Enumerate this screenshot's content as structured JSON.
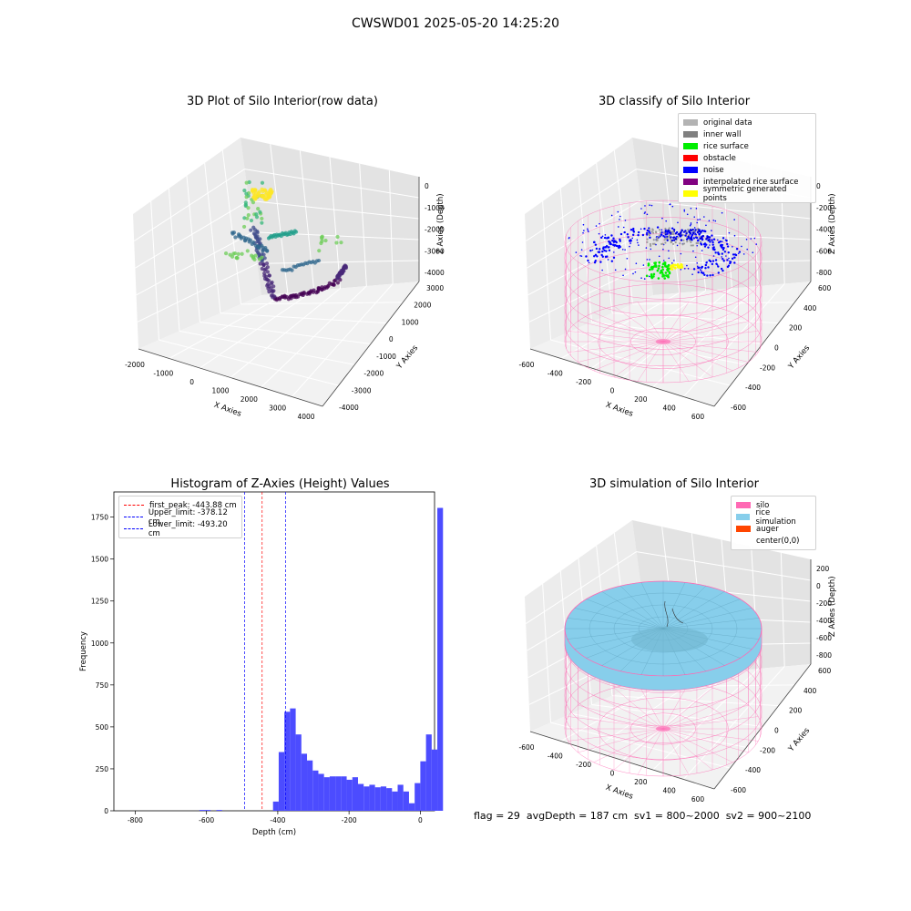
{
  "figure": {
    "suptitle": "CWSWD01 2025-05-20 14:25:20",
    "footer": "flag = 29  avgDepth = 187 cm  sv1 = 800~2000  sv2 = 900~2100"
  },
  "chart_data": [
    {
      "type": "scatter",
      "panel": "raw",
      "title": "3D Plot of Silo Interior(row data)",
      "xlabel": "X Axies",
      "ylabel": "Y Axies",
      "zlabel": "Z Axies (Depth)",
      "x_ticks": [
        "-2000",
        "-1000",
        "0",
        "1000",
        "2000",
        "3000",
        "4000"
      ],
      "y_ticks": [
        "-4000",
        "-3000",
        "-2000",
        "-1000",
        "0",
        "1000",
        "2000",
        "3000"
      ],
      "z_ticks": [
        "-4000",
        "-3000",
        "-2000",
        "-1000",
        "0"
      ],
      "colormap": "viridis"
    },
    {
      "type": "scatter",
      "panel": "classify",
      "title": "3D classify of Silo Interior",
      "xlabel": "X Axies",
      "ylabel": "Y Axies",
      "zlabel": "Z Axies (Depth)",
      "x_ticks": [
        "-600",
        "-400",
        "-200",
        "0",
        "200",
        "400",
        "600"
      ],
      "y_ticks": [
        "-600",
        "-400",
        "-200",
        "0",
        "200",
        "400",
        "600"
      ],
      "z_ticks": [
        "-800",
        "-600",
        "-400",
        "-200",
        "0"
      ],
      "legend": [
        {
          "label": "original data",
          "color": "#b3b3b3"
        },
        {
          "label": "inner wall",
          "color": "#808080"
        },
        {
          "label": "rice surface",
          "color": "#00ee00"
        },
        {
          "label": "obstacle",
          "color": "#ff0000"
        },
        {
          "label": "noise",
          "color": "#0000ff"
        },
        {
          "label": "interpolated rice surface",
          "color": "#800080"
        },
        {
          "label": "symmetric generated points",
          "color": "#ffff00"
        }
      ]
    },
    {
      "type": "bar",
      "panel": "histogram",
      "title": "Histogram of Z-Axies (Height) Values",
      "xlabel": "Depth (cm)",
      "ylabel": "Frequency",
      "xlim": [
        -860,
        40
      ],
      "ylim": [
        0,
        1900
      ],
      "x_ticks": [
        -800,
        -600,
        -400,
        -200,
        0
      ],
      "y_ticks": [
        0,
        250,
        500,
        750,
        1000,
        1250,
        1500,
        1750
      ],
      "bin_edges_start": -620,
      "bin_width": 15.9,
      "values": [
        5,
        5,
        0,
        5,
        0,
        0,
        0,
        0,
        0,
        0,
        0,
        0,
        0,
        55,
        350,
        590,
        610,
        455,
        340,
        300,
        240,
        220,
        200,
        205,
        205,
        205,
        185,
        200,
        160,
        145,
        155,
        140,
        145,
        135,
        115,
        155,
        115,
        45,
        165,
        295,
        455,
        365,
        1805
      ],
      "bar_color": "#4c4cff",
      "vlines": [
        {
          "label": "first_peak: -443.88 cm",
          "value": -443.88,
          "color": "#ff0000"
        },
        {
          "label": "Upper_limit: -378.12 cm",
          "value": -378.12,
          "color": "#0000ff"
        },
        {
          "label": "Lower_limit: -493.20 cm",
          "value": -493.2,
          "color": "#0000ff"
        }
      ],
      "legend_position": "top-left"
    },
    {
      "type": "area",
      "panel": "simulation",
      "title": "3D simulation of Silo Interior",
      "xlabel": "X Axies",
      "ylabel": "Y Axies",
      "zlabel": "Z Axies (Depth)",
      "x_ticks": [
        "-600",
        "-400",
        "-200",
        "0",
        "200",
        "400",
        "600"
      ],
      "y_ticks": [
        "-600",
        "-400",
        "-200",
        "0",
        "200",
        "400",
        "600"
      ],
      "z_ticks": [
        "-800",
        "-600",
        "-400",
        "-200",
        "0",
        "200"
      ],
      "legend": [
        {
          "label": "silo",
          "color": "#ff69b4"
        },
        {
          "label": "rice simulation",
          "color": "#87ceeb"
        },
        {
          "label": "auger",
          "color": "#ff4500"
        },
        {
          "label": "center(0,0)",
          "color": "#ffffff"
        }
      ]
    }
  ]
}
